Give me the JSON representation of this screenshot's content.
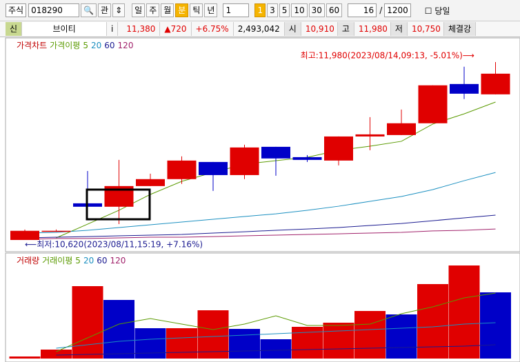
{
  "toolbar": {
    "market": "주식",
    "code": "018290",
    "btn_gwan": "관",
    "periods": [
      "일",
      "주",
      "월",
      "분",
      "틱",
      "년"
    ],
    "interval": "1",
    "minutes": [
      "1",
      "3",
      "5",
      "10",
      "30",
      "60"
    ],
    "count": "16",
    "slash": "/",
    "total": "1200",
    "today": "당일"
  },
  "quote": {
    "badge": "신",
    "name": "브이티",
    "info": "i",
    "price": "11,380",
    "change": "▲720",
    "rate": "+6.75%",
    "volume": "2,493,042",
    "open_label": "시",
    "open": "10,910",
    "high_label": "고",
    "high": "11,980",
    "low_label": "저",
    "low": "10,750",
    "strength": "체결강"
  },
  "chart_data": [
    {
      "type": "candlestick",
      "legend_title": "가격차트",
      "ma_title": "가격이평",
      "annotations": {
        "high": "최고:11,980(2023/08/14,09:13, -5.01%)⟶",
        "low": "⟵최저:10,620(2023/08/11,15:19, +7.16%)"
      },
      "ylim": [
        10550,
        12140
      ],
      "up_color": "#e00000",
      "down_color": "#0000c8",
      "open": [
        10620,
        10690,
        10900,
        10874,
        11032,
        11085,
        11216,
        11116,
        11332,
        11253,
        11227,
        11411,
        11422,
        11512,
        11812,
        11733
      ],
      "high": [
        10700,
        10700,
        11147,
        11232,
        11127,
        11259,
        11216,
        11348,
        11332,
        11269,
        11411,
        11559,
        11617,
        11802,
        11944,
        11980
      ],
      "low": [
        10620,
        10690,
        10794,
        10741,
        11032,
        11048,
        10995,
        11085,
        11111,
        11216,
        11190,
        11306,
        11422,
        11512,
        11697,
        11733
      ],
      "close": [
        10690,
        10690,
        10874,
        11032,
        11085,
        11227,
        11116,
        11327,
        11243,
        11232,
        11411,
        11427,
        11512,
        11802,
        11738,
        11891
      ],
      "series": [
        {
          "name": "5",
          "color": "#5a9a00",
          "values": [
            null,
            10636,
            10741,
            10847,
            10968,
            11068,
            11136,
            11200,
            11226,
            11252,
            11305,
            11337,
            11374,
            11506,
            11584,
            11674
          ]
        },
        {
          "name": "20",
          "color": "#1a8fc0",
          "values": [
            10673,
            10678,
            10694,
            10715,
            10736,
            10757,
            10778,
            10799,
            10820,
            10847,
            10878,
            10915,
            10952,
            11005,
            11073,
            11136
          ]
        },
        {
          "name": "60",
          "color": "#1a1a90",
          "values": [
            10636,
            10641,
            10646,
            10652,
            10657,
            10662,
            10673,
            10683,
            10694,
            10704,
            10715,
            10731,
            10746,
            10767,
            10789,
            10810
          ]
        },
        {
          "name": "120",
          "color": "#a0206a",
          "values": [
            10625,
            10631,
            10631,
            10636,
            10641,
            10641,
            10646,
            10652,
            10657,
            10662,
            10667,
            10673,
            10678,
            10689,
            10694,
            10704
          ]
        }
      ]
    },
    {
      "type": "bar",
      "legend_title": "거래량",
      "ma_title": "거래이평",
      "ylim": [
        0,
        3900000
      ],
      "values": [
        78000,
        338000,
        2730000,
        2210000,
        1144000,
        1144000,
        1820000,
        1118000,
        728000,
        1196000,
        1352000,
        1794000,
        1664000,
        2808000,
        3510000,
        2496000
      ],
      "colors": [
        "#e00000",
        "#e00000",
        "#e00000",
        "#0000c8",
        "#0000c8",
        "#e00000",
        "#e00000",
        "#0000c8",
        "#0000c8",
        "#e00000",
        "#e00000",
        "#e00000",
        "#0000c8",
        "#e00000",
        "#e00000",
        "#0000c8"
      ],
      "series": [
        {
          "name": "5",
          "color": "#5a9a00",
          "values": [
            null,
            260000,
            780000,
            1300000,
            1508000,
            1300000,
            1092000,
            1300000,
            1612000,
            1248000,
            1248000,
            1300000,
            1690000,
            1950000,
            2288000,
            2470000
          ]
        },
        {
          "name": "20",
          "color": "#1a8fc0",
          "values": [
            null,
            390000,
            520000,
            650000,
            728000,
            780000,
            832000,
            884000,
            936000,
            988000,
            1040000,
            1092000,
            1144000,
            1196000,
            1300000,
            1352000
          ]
        },
        {
          "name": "60",
          "color": "#1a1a90",
          "values": [
            null,
            130000,
            156000,
            182000,
            208000,
            234000,
            260000,
            286000,
            312000,
            338000,
            364000,
            390000,
            416000,
            442000,
            468000,
            520000
          ]
        },
        {
          "name": "120",
          "color": "#a0206a",
          "values": [
            null,
            null,
            null,
            null,
            null,
            null,
            null,
            null,
            null,
            null,
            null,
            null,
            null,
            null,
            null,
            null
          ]
        }
      ]
    }
  ]
}
